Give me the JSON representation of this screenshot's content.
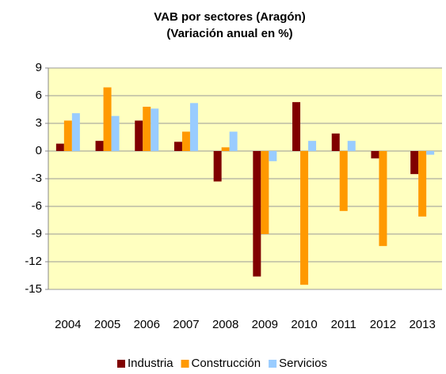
{
  "chart_data": {
    "type": "bar",
    "title": "VAB por sectores (Aragón)",
    "subtitle": "(Variación anual en %)",
    "categories": [
      "2004",
      "2005",
      "2006",
      "2007",
      "2008",
      "2009",
      "2010",
      "2011",
      "2012",
      "2013"
    ],
    "series": [
      {
        "name": "Industria",
        "color": "#800000",
        "values": [
          0.8,
          1.1,
          3.3,
          1.0,
          -3.3,
          -13.6,
          5.3,
          1.9,
          -0.8,
          -2.5
        ]
      },
      {
        "name": "Construcción",
        "color": "#ff9900",
        "values": [
          3.3,
          6.9,
          4.8,
          2.1,
          0.4,
          -9.0,
          -14.5,
          -6.5,
          -10.3,
          -7.1
        ]
      },
      {
        "name": "Servicios",
        "color": "#99ccff",
        "values": [
          4.1,
          3.8,
          4.6,
          5.2,
          2.1,
          -1.1,
          1.1,
          1.1,
          0.0,
          -0.4
        ]
      }
    ],
    "ylim": [
      -15,
      9
    ],
    "yticks": [
      9,
      6,
      3,
      0,
      -3,
      -6,
      -9,
      -12,
      -15
    ],
    "grid": true,
    "legend": "bottom"
  }
}
